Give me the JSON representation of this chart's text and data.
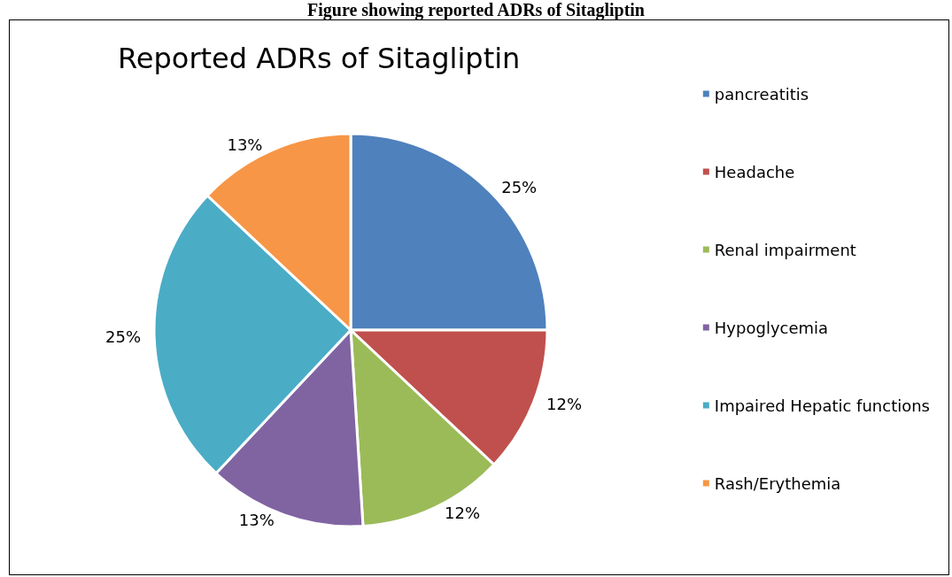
{
  "chart_data": {
    "type": "pie",
    "title": "Reported ADRs of Sitagliptin",
    "annotations": [
      "Figure showing reported ADRs of Sitagliptin"
    ],
    "categories": [
      "pancreatitis",
      "Headache",
      "Renal impairment",
      "Hypoglycemia",
      "Impaired Hepatic functions",
      "Rash/Erythemia"
    ],
    "values": [
      25,
      12,
      12,
      13,
      25,
      13
    ],
    "colors": [
      "#4f81bd",
      "#c0504d",
      "#9bbb59",
      "#8064a2",
      "#4bacc6",
      "#f79646"
    ],
    "value_labels": [
      "25%",
      "12%",
      "12%",
      "13%",
      "25%",
      "13%"
    ],
    "legend": "right"
  }
}
